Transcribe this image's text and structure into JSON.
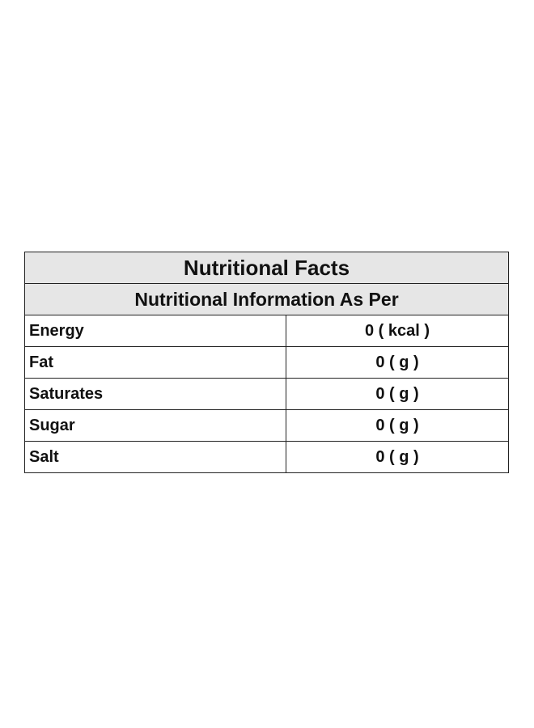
{
  "table": {
    "title": "Nutritional Facts",
    "subtitle": "Nutritional Information As Per",
    "rows": [
      {
        "label": "Energy",
        "value": "0 ( kcal )"
      },
      {
        "label": "Fat",
        "value": "0 ( g )"
      },
      {
        "label": "Saturates",
        "value": "0 ( g )"
      },
      {
        "label": "Sugar",
        "value": "0 ( g )"
      },
      {
        "label": "Salt",
        "value": "0 ( g )"
      }
    ]
  },
  "colors": {
    "header_background": "#e6e6e6",
    "border": "#222222",
    "text": "#111111"
  }
}
